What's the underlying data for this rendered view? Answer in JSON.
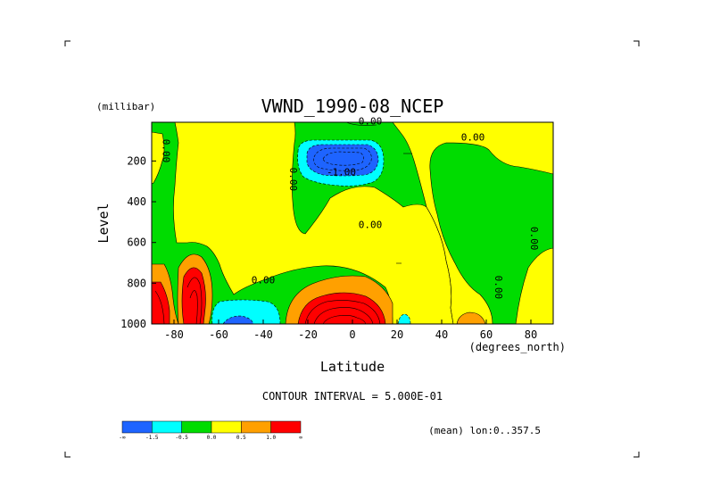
{
  "chart_data": {
    "type": "heatmap",
    "title": "VWND_1990-08_NCEP",
    "units_label": "(millibar)",
    "ylabel": "Level",
    "xlabel": "Latitude",
    "x_units_label": "(degrees_north)",
    "x_ticks": [
      -80,
      -60,
      -40,
      -20,
      0,
      20,
      40,
      60,
      80
    ],
    "y_ticks": [
      200,
      400,
      600,
      800,
      1000
    ],
    "xlim": [
      -90,
      90
    ],
    "ylim": [
      1000,
      10
    ],
    "y_reversed": true,
    "contour_interval_text": "CONTOUR INTERVAL = 5.000E-01",
    "annotation": "(mean) lon:0..357.5",
    "contour_labels": [
      {
        "text": "0.00",
        "lat": 8,
        "level": 20
      },
      {
        "text": "0.00",
        "lat": 54,
        "level": 100
      },
      {
        "text": "-1.00",
        "lat": -5,
        "level": 270
      },
      {
        "text": "0.00",
        "lat": -85,
        "level": 150
      },
      {
        "text": "0.00",
        "lat": -28,
        "level": 290
      },
      {
        "text": "0.00",
        "lat": 8,
        "level": 530
      },
      {
        "text": "0.00",
        "lat": 80,
        "level": 580
      },
      {
        "text": "0.00",
        "lat": 64,
        "level": 820
      },
      {
        "text": "0.00",
        "lat": -40,
        "level": 800
      }
    ],
    "colorbar": {
      "colors": [
        "#1e64ff",
        "#00ffff",
        "#00dc00",
        "#ffff00",
        "#ffa000",
        "#ff0000"
      ],
      "tick_labels": [
        "-∞",
        "-1.5",
        "-0.5",
        "0.0",
        "0.5",
        "1.0",
        "∞"
      ]
    },
    "features": [
      {
        "kind": "max",
        "lat": -5,
        "level": 930,
        "approx_value": 3.0
      },
      {
        "kind": "max",
        "lat": -74,
        "level": 880,
        "approx_value": 3.0
      },
      {
        "kind": "max",
        "lat": -87,
        "level": 880,
        "approx_value": 2.5
      },
      {
        "kind": "min",
        "lat": -5,
        "level": 180,
        "approx_value": -2.5
      },
      {
        "kind": "min",
        "lat": -50,
        "level": 980,
        "approx_value": -1.5
      }
    ]
  }
}
